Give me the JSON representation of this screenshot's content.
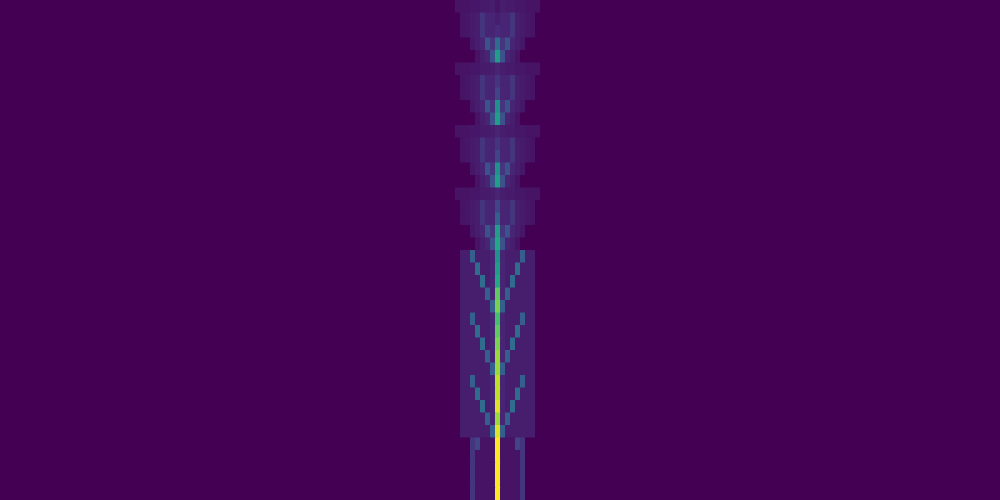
{
  "chart_data": {
    "type": "heatmap",
    "tick_labels": false,
    "xlim": [
      0,
      200
    ],
    "ylim": [
      0,
      40
    ],
    "zlim": [
      0,
      1
    ],
    "x": [
      86,
      87,
      88,
      89,
      90,
      91,
      92,
      93,
      94,
      95,
      96,
      97,
      98,
      99,
      100,
      101,
      102,
      103,
      104,
      105,
      106,
      107,
      108,
      109,
      110,
      111,
      112,
      113
    ],
    "y": [
      0,
      1,
      2,
      3,
      4,
      5,
      6,
      7,
      8,
      9,
      10,
      11,
      12,
      13,
      14,
      15,
      16,
      17,
      18,
      19,
      20,
      21,
      22,
      23,
      24,
      25,
      26,
      27,
      28,
      29,
      30,
      31,
      32,
      33,
      34,
      35,
      36,
      37,
      38,
      39
    ],
    "cells": [
      [
        0,
        0,
        0,
        0,
        0,
        0.05,
        0.05,
        0.05,
        0.06,
        0.06,
        0.07,
        0.07,
        0.08,
        0.05,
        0.08,
        0.07,
        0.07,
        0.06,
        0.06,
        0.05,
        0.05,
        0.05,
        0,
        0,
        0,
        0,
        0,
        0
      ],
      [
        0,
        0,
        0,
        0,
        0,
        0,
        0.05,
        0.06,
        0.07,
        0.08,
        0.15,
        0.1,
        0.1,
        0.08,
        0.1,
        0.1,
        0.15,
        0.08,
        0.07,
        0.06,
        0.05,
        0,
        0,
        0,
        0,
        0,
        0,
        0
      ],
      [
        0,
        0,
        0,
        0,
        0,
        0,
        0.05,
        0.06,
        0.07,
        0.08,
        0.15,
        0.1,
        0.1,
        0.12,
        0.1,
        0.1,
        0.15,
        0.08,
        0.07,
        0.06,
        0.05,
        0,
        0,
        0,
        0,
        0,
        0,
        0
      ],
      [
        0,
        0,
        0,
        0,
        0,
        0,
        0,
        0,
        0.06,
        0.08,
        0.1,
        0.25,
        0.15,
        0.35,
        0.15,
        0.25,
        0.1,
        0.08,
        0.06,
        0,
        0,
        0,
        0,
        0,
        0,
        0,
        0,
        0
      ],
      [
        0,
        0,
        0,
        0,
        0,
        0,
        0,
        0,
        0,
        0.05,
        0.08,
        0.1,
        0.25,
        0.55,
        0.25,
        0.1,
        0.08,
        0.05,
        0,
        0,
        0,
        0,
        0,
        0,
        0,
        0,
        0,
        0
      ],
      [
        0,
        0,
        0,
        0,
        0,
        0.05,
        0.05,
        0.05,
        0.06,
        0.06,
        0.07,
        0.07,
        0.08,
        0.1,
        0.08,
        0.07,
        0.07,
        0.06,
        0.06,
        0.05,
        0.05,
        0.05,
        0,
        0,
        0,
        0,
        0,
        0
      ],
      [
        0,
        0,
        0,
        0,
        0,
        0,
        0.05,
        0.06,
        0.07,
        0.08,
        0.15,
        0.1,
        0.1,
        0.15,
        0.1,
        0.1,
        0.15,
        0.08,
        0.07,
        0.06,
        0.05,
        0,
        0,
        0,
        0,
        0,
        0,
        0
      ],
      [
        0,
        0,
        0,
        0,
        0,
        0,
        0.05,
        0.06,
        0.07,
        0.08,
        0.15,
        0.1,
        0.1,
        0.2,
        0.1,
        0.1,
        0.15,
        0.08,
        0.07,
        0.06,
        0.05,
        0,
        0,
        0,
        0,
        0,
        0,
        0
      ],
      [
        0,
        0,
        0,
        0,
        0,
        0,
        0,
        0,
        0.06,
        0.08,
        0.1,
        0.25,
        0.15,
        0.5,
        0.15,
        0.25,
        0.1,
        0.08,
        0.06,
        0,
        0,
        0,
        0,
        0,
        0,
        0,
        0,
        0
      ],
      [
        0,
        0,
        0,
        0,
        0,
        0,
        0,
        0,
        0,
        0.05,
        0.08,
        0.1,
        0.25,
        0.55,
        0.25,
        0.1,
        0.08,
        0.05,
        0,
        0,
        0,
        0,
        0,
        0,
        0,
        0,
        0,
        0
      ],
      [
        0,
        0,
        0,
        0,
        0,
        0.05,
        0.05,
        0.05,
        0.06,
        0.06,
        0.07,
        0.07,
        0.08,
        0.1,
        0.08,
        0.07,
        0.07,
        0.06,
        0.06,
        0.05,
        0.05,
        0.05,
        0,
        0,
        0,
        0,
        0,
        0
      ],
      [
        0,
        0,
        0,
        0,
        0,
        0,
        0.05,
        0.06,
        0.07,
        0.08,
        0.15,
        0.1,
        0.1,
        0.15,
        0.1,
        0.1,
        0.15,
        0.08,
        0.07,
        0.06,
        0.05,
        0,
        0,
        0,
        0,
        0,
        0,
        0
      ],
      [
        0,
        0,
        0,
        0,
        0,
        0,
        0.05,
        0.06,
        0.07,
        0.08,
        0.15,
        0.1,
        0.1,
        0.2,
        0.1,
        0.1,
        0.15,
        0.08,
        0.07,
        0.06,
        0.05,
        0,
        0,
        0,
        0,
        0,
        0,
        0
      ],
      [
        0,
        0,
        0,
        0,
        0,
        0,
        0,
        0,
        0.06,
        0.08,
        0.1,
        0.25,
        0.15,
        0.5,
        0.15,
        0.25,
        0.1,
        0.08,
        0.06,
        0,
        0,
        0,
        0,
        0,
        0,
        0,
        0,
        0
      ],
      [
        0,
        0,
        0,
        0,
        0,
        0,
        0,
        0,
        0,
        0.05,
        0.08,
        0.1,
        0.25,
        0.55,
        0.25,
        0.1,
        0.08,
        0.05,
        0,
        0,
        0,
        0,
        0,
        0,
        0,
        0,
        0,
        0
      ],
      [
        0,
        0,
        0,
        0,
        0,
        0.05,
        0.05,
        0.05,
        0.06,
        0.06,
        0.07,
        0.07,
        0.08,
        0.1,
        0.08,
        0.07,
        0.07,
        0.06,
        0.06,
        0.05,
        0.05,
        0.05,
        0,
        0,
        0,
        0,
        0,
        0
      ],
      [
        0,
        0,
        0,
        0,
        0,
        0,
        0.05,
        0.06,
        0.07,
        0.08,
        0.15,
        0.1,
        0.1,
        0.2,
        0.1,
        0.1,
        0.15,
        0.08,
        0.07,
        0.06,
        0.05,
        0,
        0,
        0,
        0,
        0,
        0,
        0
      ],
      [
        0,
        0,
        0,
        0,
        0,
        0,
        0.05,
        0.06,
        0.07,
        0.08,
        0.15,
        0.1,
        0.1,
        0.3,
        0.1,
        0.1,
        0.15,
        0.08,
        0.07,
        0.06,
        0.05,
        0,
        0,
        0,
        0,
        0,
        0,
        0
      ],
      [
        0,
        0,
        0,
        0,
        0,
        0,
        0,
        0,
        0.06,
        0.08,
        0.1,
        0.25,
        0.15,
        0.55,
        0.15,
        0.25,
        0.1,
        0.08,
        0.06,
        0,
        0,
        0,
        0,
        0,
        0,
        0,
        0,
        0
      ],
      [
        0,
        0,
        0,
        0,
        0,
        0,
        0,
        0,
        0,
        0.05,
        0.08,
        0.1,
        0.25,
        0.6,
        0.25,
        0.1,
        0.08,
        0.05,
        0,
        0,
        0,
        0,
        0,
        0,
        0,
        0,
        0,
        0
      ],
      [
        0,
        0,
        0,
        0,
        0,
        0,
        0.08,
        0.08,
        0.3,
        0.08,
        0.08,
        0.08,
        0.1,
        0.5,
        0.1,
        0.08,
        0.08,
        0.08,
        0.3,
        0.08,
        0.08,
        0,
        0,
        0,
        0,
        0,
        0,
        0
      ],
      [
        0,
        0,
        0,
        0,
        0,
        0,
        0.08,
        0.08,
        0.08,
        0.35,
        0.08,
        0.08,
        0.1,
        0.55,
        0.1,
        0.08,
        0.08,
        0.35,
        0.08,
        0.08,
        0.08,
        0,
        0,
        0,
        0,
        0,
        0,
        0
      ],
      [
        0,
        0,
        0,
        0,
        0,
        0,
        0.08,
        0.08,
        0.08,
        0.08,
        0.35,
        0.08,
        0.1,
        0.6,
        0.1,
        0.08,
        0.35,
        0.08,
        0.08,
        0.08,
        0.08,
        0,
        0,
        0,
        0,
        0,
        0,
        0
      ],
      [
        0,
        0,
        0,
        0,
        0,
        0,
        0.08,
        0.08,
        0.08,
        0.08,
        0.08,
        0.3,
        0.1,
        0.75,
        0.1,
        0.3,
        0.08,
        0.08,
        0.08,
        0.08,
        0.08,
        0,
        0,
        0,
        0,
        0,
        0,
        0
      ],
      [
        0,
        0,
        0,
        0,
        0,
        0,
        0.08,
        0.08,
        0.08,
        0.08,
        0.08,
        0.08,
        0.3,
        0.8,
        0.3,
        0.08,
        0.08,
        0.08,
        0.08,
        0.08,
        0.08,
        0,
        0,
        0,
        0,
        0,
        0,
        0
      ],
      [
        0,
        0,
        0,
        0,
        0,
        0,
        0.08,
        0.08,
        0.3,
        0.08,
        0.08,
        0.08,
        0.1,
        0.7,
        0.1,
        0.08,
        0.08,
        0.08,
        0.3,
        0.08,
        0.08,
        0,
        0,
        0,
        0,
        0,
        0,
        0
      ],
      [
        0,
        0,
        0,
        0,
        0,
        0,
        0.08,
        0.08,
        0.08,
        0.35,
        0.08,
        0.08,
        0.1,
        0.75,
        0.1,
        0.08,
        0.08,
        0.35,
        0.08,
        0.08,
        0.08,
        0,
        0,
        0,
        0,
        0,
        0,
        0
      ],
      [
        0,
        0,
        0,
        0,
        0,
        0,
        0.08,
        0.08,
        0.08,
        0.08,
        0.35,
        0.08,
        0.1,
        0.8,
        0.1,
        0.08,
        0.35,
        0.08,
        0.08,
        0.08,
        0.08,
        0,
        0,
        0,
        0,
        0,
        0,
        0
      ],
      [
        0,
        0,
        0,
        0,
        0,
        0,
        0.08,
        0.08,
        0.08,
        0.08,
        0.08,
        0.3,
        0.1,
        0.85,
        0.1,
        0.3,
        0.08,
        0.08,
        0.08,
        0.08,
        0.08,
        0,
        0,
        0,
        0,
        0,
        0,
        0
      ],
      [
        0,
        0,
        0,
        0,
        0,
        0,
        0.08,
        0.08,
        0.08,
        0.08,
        0.08,
        0.08,
        0.3,
        0.85,
        0.3,
        0.08,
        0.08,
        0.08,
        0.08,
        0.08,
        0.08,
        0,
        0,
        0,
        0,
        0,
        0,
        0
      ],
      [
        0,
        0,
        0,
        0,
        0,
        0,
        0.08,
        0.08,
        0.3,
        0.08,
        0.08,
        0.08,
        0.1,
        0.9,
        0.1,
        0.08,
        0.08,
        0.08,
        0.3,
        0.08,
        0.08,
        0,
        0,
        0,
        0,
        0,
        0,
        0
      ],
      [
        0,
        0,
        0,
        0,
        0,
        0,
        0.08,
        0.08,
        0.08,
        0.35,
        0.08,
        0.08,
        0.1,
        0.9,
        0.1,
        0.08,
        0.08,
        0.35,
        0.08,
        0.08,
        0.08,
        0,
        0,
        0,
        0,
        0,
        0,
        0
      ],
      [
        0,
        0,
        0,
        0,
        0,
        0,
        0.08,
        0.08,
        0.08,
        0.08,
        0.35,
        0.08,
        0.1,
        0.95,
        0.1,
        0.08,
        0.35,
        0.08,
        0.08,
        0.08,
        0.08,
        0,
        0,
        0,
        0,
        0,
        0,
        0
      ],
      [
        0,
        0,
        0,
        0,
        0,
        0,
        0.08,
        0.08,
        0.08,
        0.08,
        0.08,
        0.3,
        0.1,
        0.85,
        0.1,
        0.3,
        0.08,
        0.08,
        0.08,
        0.08,
        0.08,
        0,
        0,
        0,
        0,
        0,
        0,
        0
      ],
      [
        0,
        0,
        0,
        0,
        0,
        0,
        0.08,
        0.08,
        0.08,
        0.08,
        0.08,
        0.08,
        0.3,
        0.95,
        0.3,
        0.08,
        0.08,
        0.08,
        0.08,
        0.08,
        0.08,
        0,
        0,
        0,
        0,
        0,
        0,
        0
      ],
      [
        0,
        0,
        0,
        0,
        0,
        0,
        0,
        0,
        0.15,
        0.2,
        0.05,
        0.05,
        0.05,
        1,
        0.05,
        0.05,
        0.05,
        0.2,
        0.15,
        0,
        0,
        0,
        0,
        0,
        0,
        0,
        0,
        0
      ],
      [
        0,
        0,
        0,
        0,
        0,
        0,
        0,
        0,
        0.15,
        0.05,
        0.05,
        0.05,
        0.05,
        1,
        0.05,
        0.05,
        0.05,
        0.05,
        0.15,
        0,
        0,
        0,
        0,
        0,
        0,
        0,
        0,
        0
      ],
      [
        0,
        0,
        0,
        0,
        0,
        0,
        0,
        0,
        0.15,
        0.05,
        0.05,
        0.05,
        0.05,
        1,
        0.05,
        0.05,
        0.05,
        0.05,
        0.15,
        0,
        0,
        0,
        0,
        0,
        0,
        0,
        0,
        0
      ],
      [
        0,
        0,
        0,
        0,
        0,
        0,
        0,
        0,
        0.15,
        0.05,
        0.05,
        0.05,
        0.05,
        1,
        0.05,
        0.05,
        0.05,
        0.05,
        0.15,
        0,
        0,
        0,
        0,
        0,
        0,
        0,
        0,
        0
      ],
      [
        0,
        0,
        0,
        0,
        0,
        0,
        0,
        0,
        0.15,
        0.05,
        0.05,
        0.05,
        0.05,
        1,
        0.05,
        0.05,
        0.05,
        0.05,
        0.15,
        0,
        0,
        0,
        0,
        0,
        0,
        0,
        0,
        0
      ]
    ]
  }
}
